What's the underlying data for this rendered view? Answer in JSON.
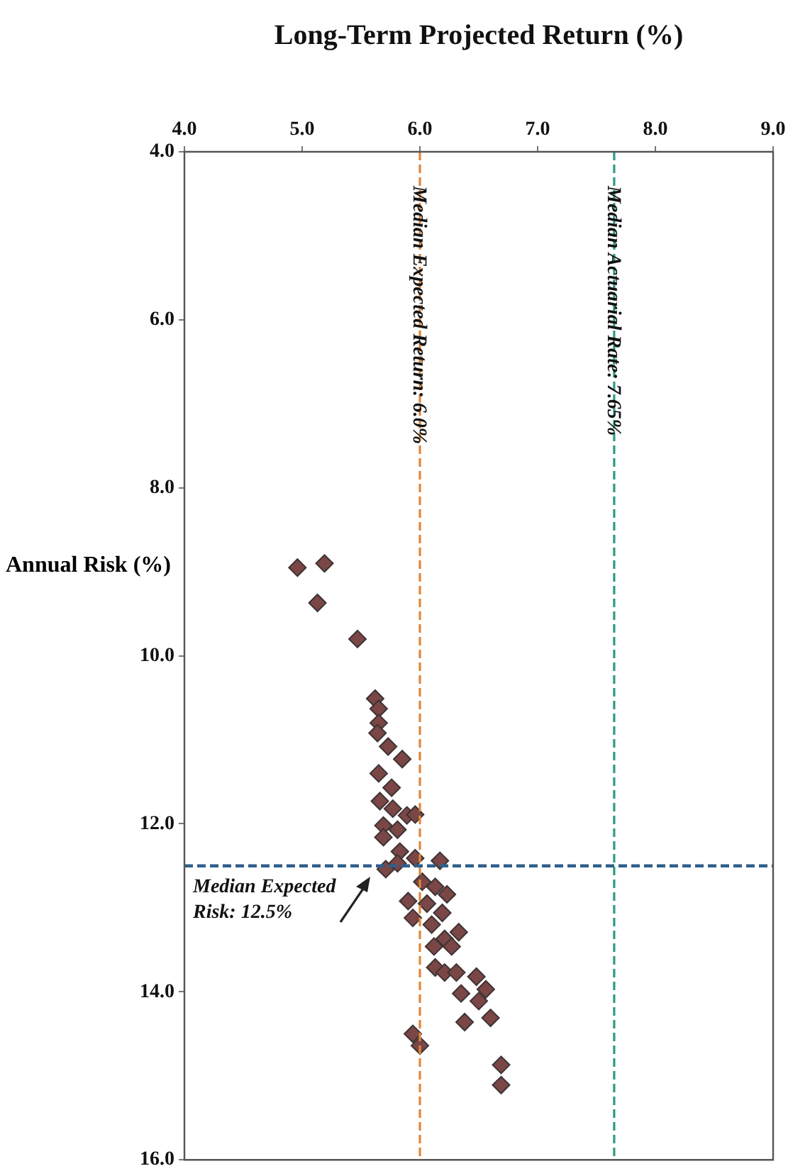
{
  "chart_data": {
    "type": "scatter",
    "xlabel": "Long-Term Projected Return (%)",
    "ylabel": "Annual Risk (%)",
    "xlim": [
      4,
      9
    ],
    "xticks": [
      {
        "value": 4,
        "label": "4.0"
      },
      {
        "value": 5,
        "label": "5.0"
      },
      {
        "value": 6,
        "label": "6.0"
      },
      {
        "value": 7,
        "label": "7.0"
      },
      {
        "value": 8,
        "label": "8.0"
      },
      {
        "value": 9,
        "label": "9.0"
      }
    ],
    "ylim": [
      16,
      4
    ],
    "yticks": [
      {
        "value": 4,
        "label": "4.0"
      },
      {
        "value": 6,
        "label": "6.0"
      },
      {
        "value": 8,
        "label": "8.0"
      },
      {
        "value": 10,
        "label": "10.0"
      },
      {
        "value": 12,
        "label": "12.0"
      },
      {
        "value": 14,
        "label": "14.0"
      },
      {
        "value": 16,
        "label": "16.0"
      }
    ],
    "series": [
      {
        "color": "#7a4646",
        "x": [
          4.96,
          5.19,
          5.13,
          5.47,
          5.62,
          5.65,
          5.65,
          5.64,
          5.73,
          5.85,
          5.65,
          5.76,
          5.66,
          5.77,
          5.89,
          5.96,
          5.69,
          5.81,
          5.69,
          5.83,
          5.71,
          5.81,
          5.96,
          6.17,
          6.02,
          6.13,
          6.23,
          5.9,
          6.06,
          5.94,
          6.19,
          6.1,
          6.21,
          6.33,
          6.12,
          6.27,
          6.13,
          6.21,
          6.31,
          6.48,
          6.56,
          6.35,
          6.5,
          6.38,
          6.6,
          5.94,
          6.0,
          6.69,
          6.69
        ],
        "values": [
          8.95,
          8.9,
          9.37,
          9.8,
          10.51,
          10.63,
          10.8,
          10.92,
          11.08,
          11.23,
          11.4,
          11.57,
          11.73,
          11.82,
          11.9,
          11.89,
          12.02,
          12.07,
          12.16,
          12.33,
          12.54,
          12.47,
          12.41,
          12.44,
          12.69,
          12.75,
          12.84,
          12.92,
          12.95,
          13.12,
          13.06,
          13.2,
          13.37,
          13.29,
          13.46,
          13.46,
          13.71,
          13.77,
          13.77,
          13.82,
          13.97,
          14.02,
          14.11,
          14.36,
          14.31,
          14.5,
          14.64,
          14.87,
          15.11
        ]
      }
    ],
    "marker": "diamond",
    "grid": false,
    "legend": false,
    "ref_lines": [
      {
        "axis": "x",
        "value": 6.0,
        "label": "Median Expected Return: 6.0%",
        "color": "#e0873a",
        "line_style": "dashed"
      },
      {
        "axis": "x",
        "value": 7.65,
        "label": "Median Actuarial Rate: 7.65%",
        "color": "#2f9a88",
        "line_style": "dashed"
      },
      {
        "axis": "y",
        "value": 12.5,
        "label": "Median Expected Risk: 12.5%",
        "color": "#2f5f8a",
        "line_style": "dashed"
      }
    ]
  }
}
